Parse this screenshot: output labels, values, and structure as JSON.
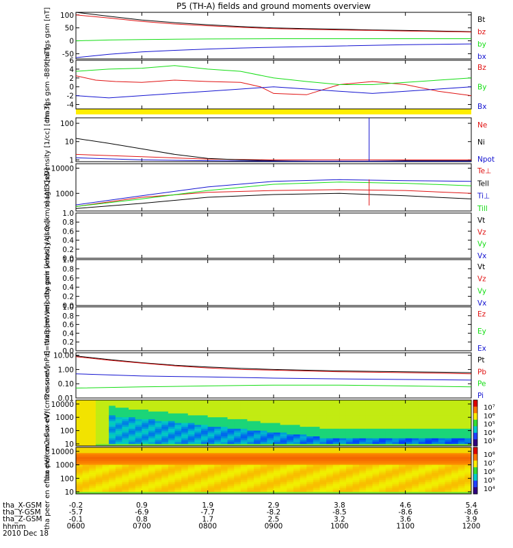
{
  "title": "P5 (TH-A) fields and ground moments overview",
  "date_label": "2010 Dec 18",
  "colors": {
    "black": "#000000",
    "red": "#e01010",
    "green": "#11dd11",
    "blue": "#1010d0",
    "yellow": "#ffee00"
  },
  "chart_data": [
    {
      "type": "line",
      "ylabel": "tha fgs gsm [nT]",
      "ylim": [
        -70,
        110
      ],
      "ticks": [
        100,
        50,
        0,
        -50
      ],
      "series": [
        {
          "name": "Bt",
          "color": "#000000",
          "x": [
            6.0,
            6.5,
            7.0,
            7.5,
            8.0,
            8.5,
            9.0,
            9.5,
            10.0,
            10.5,
            11.0,
            11.5,
            12.0
          ],
          "y": [
            110,
            95,
            80,
            70,
            62,
            55,
            50,
            47,
            45,
            42,
            40,
            38,
            35
          ]
        },
        {
          "name": "bz",
          "color": "#e01010",
          "x": [
            6.0,
            6.5,
            7.0,
            7.5,
            8.0,
            8.5,
            9.0,
            9.5,
            10.0,
            10.5,
            11.0,
            11.5,
            12.0
          ],
          "y": [
            100,
            88,
            75,
            65,
            58,
            52,
            47,
            44,
            42,
            40,
            38,
            36,
            34
          ]
        },
        {
          "name": "by",
          "color": "#11dd11",
          "x": [
            6.0,
            6.5,
            7.0,
            8.0,
            9.0,
            10.0,
            11.0,
            12.0
          ],
          "y": [
            0,
            3,
            5,
            7,
            8,
            8,
            8,
            8
          ]
        },
        {
          "name": "bx",
          "color": "#1010d0",
          "x": [
            6.0,
            6.5,
            7.0,
            7.5,
            8.0,
            8.5,
            9.0,
            10.0,
            11.0,
            12.0
          ],
          "y": [
            -65,
            -52,
            -43,
            -37,
            -32,
            -28,
            -25,
            -20,
            -15,
            -12
          ]
        }
      ]
    },
    {
      "type": "line",
      "ylabel": "tha fgs gsm -B89 [nT]",
      "ylim": [
        -5,
        6
      ],
      "ticks": [
        6,
        4,
        2,
        0,
        -2,
        -4
      ],
      "series": [
        {
          "name": "Bz",
          "color": "#e01010",
          "x": [
            6.0,
            6.3,
            6.6,
            7.0,
            7.5,
            8.0,
            8.5,
            8.8,
            9.0,
            9.5,
            10.0,
            10.5,
            11.0,
            11.5,
            12.0
          ],
          "y": [
            2.5,
            1.5,
            1.2,
            1.0,
            1.5,
            1.2,
            1.0,
            0.0,
            -1.5,
            -1.8,
            0.5,
            1.2,
            0.5,
            -1.0,
            -2.0
          ]
        },
        {
          "name": "By",
          "color": "#11dd11",
          "x": [
            6.0,
            6.5,
            7.0,
            7.5,
            8.0,
            8.5,
            9.0,
            9.5,
            10.0,
            10.5,
            11.0,
            11.5,
            12.0
          ],
          "y": [
            3.5,
            4.0,
            4.2,
            4.8,
            4.0,
            3.5,
            2.0,
            1.2,
            0.5,
            0.5,
            1.0,
            1.5,
            2.0
          ]
        },
        {
          "name": "Bx",
          "color": "#1010d0",
          "x": [
            6.0,
            6.5,
            7.0,
            7.5,
            8.0,
            8.5,
            9.0,
            9.5,
            10.0,
            10.5,
            11.0,
            11.5,
            12.0
          ],
          "y": [
            -2.0,
            -2.5,
            -2.0,
            -1.5,
            -1.0,
            -0.5,
            0.0,
            -0.5,
            -1.0,
            -1.5,
            -1.0,
            -0.5,
            0.0
          ]
        }
      ]
    },
    {
      "type": "line",
      "ylabel": "Density [1/cc] [cm-3]",
      "yscale": "log",
      "ylim": [
        0.8,
        200
      ],
      "ticks": [
        100,
        10,
        1
      ],
      "series": [
        {
          "name": "Ne",
          "color": "#e01010",
          "x": [
            6.0,
            7.0,
            8.0,
            9.0,
            10.0,
            11.0,
            12.0
          ],
          "y": [
            2.0,
            1.5,
            1.1,
            1.0,
            1.0,
            1.0,
            1.0
          ]
        },
        {
          "name": "Ni",
          "color": "#000000",
          "x": [
            6.0,
            6.5,
            7.0,
            7.5,
            8.0,
            8.5,
            9.0,
            10.0,
            11.0,
            12.0
          ],
          "y": [
            15,
            8,
            4,
            2,
            1.2,
            1.0,
            0.9,
            0.8,
            0.9,
            0.9
          ]
        },
        {
          "name": "Npot",
          "color": "#1010d0",
          "x": [
            6.0,
            7.0,
            8.0,
            9.0,
            10.0,
            11.0,
            12.0
          ],
          "y": [
            1.3,
            1.0,
            0.9,
            0.85,
            0.85,
            0.85,
            0.85
          ]
        }
      ]
    },
    {
      "type": "line",
      "ylabel": "magt3 [eV]",
      "yscale": "log",
      "ylim": [
        200,
        15000
      ],
      "ticks": [
        10000,
        1000
      ],
      "series": [
        {
          "name": "Te⊥",
          "color": "#e01010",
          "x": [
            6.0,
            7.0,
            8.0,
            9.0,
            10.0,
            11.0,
            12.0
          ],
          "y": [
            300,
            700,
            1100,
            1300,
            1400,
            1300,
            1000
          ]
        },
        {
          "name": "Tell",
          "color": "#000000",
          "x": [
            6.0,
            7.0,
            8.0,
            9.0,
            10.0,
            11.0,
            12.0
          ],
          "y": [
            250,
            400,
            700,
            900,
            1000,
            800,
            600
          ]
        },
        {
          "name": "Ti⊥",
          "color": "#1010d0",
          "x": [
            6.0,
            7.0,
            8.0,
            9.0,
            10.0,
            11.0,
            12.0
          ],
          "y": [
            350,
            800,
            1800,
            3000,
            3500,
            3200,
            3000
          ]
        },
        {
          "name": "Till",
          "color": "#11dd11",
          "x": [
            6.0,
            7.0,
            8.0,
            9.0,
            10.0,
            11.0,
            12.0
          ],
          "y": [
            300,
            600,
            1300,
            2300,
            2800,
            2500,
            2000
          ]
        }
      ]
    },
    {
      "type": "line",
      "ylabel": "tha peir velocity gsm [km/s] (All Qs)",
      "ylim": [
        0,
        1
      ],
      "ticks": [
        1.0,
        0.8,
        0.6,
        0.4,
        0.2,
        0.0
      ],
      "series": [
        {
          "name": "Vt",
          "color": "#000000",
          "x": [],
          "y": []
        },
        {
          "name": "Vz",
          "color": "#e01010",
          "x": [],
          "y": []
        },
        {
          "name": "Vy",
          "color": "#11dd11",
          "x": [],
          "y": []
        },
        {
          "name": "Vx",
          "color": "#1010d0",
          "x": [],
          "y": []
        }
      ]
    },
    {
      "type": "line",
      "ylabel": "tha peer velocity gsm [km/s] (All Qs)",
      "ylim": [
        0,
        1
      ],
      "ticks": [
        1.0,
        0.8,
        0.6,
        0.4,
        0.2,
        0.0
      ],
      "series": [
        {
          "name": "Vt",
          "color": "#000000",
          "x": [],
          "y": []
        },
        {
          "name": "Vz",
          "color": "#e01010",
          "x": [],
          "y": []
        },
        {
          "name": "Vy",
          "color": "#11dd11",
          "x": [],
          "y": []
        },
        {
          "name": "Vx",
          "color": "#1010d0",
          "x": [],
          "y": []
        }
      ]
    },
    {
      "type": "line",
      "ylabel": "E=-VxB [mV/m]",
      "ylim": [
        0,
        1
      ],
      "ticks": [
        1.0,
        0.8,
        0.6,
        0.4,
        0.2,
        0.0
      ],
      "series": [
        {
          "name": "Ez",
          "color": "#e01010",
          "x": [],
          "y": []
        },
        {
          "name": "Ey",
          "color": "#11dd11",
          "x": [],
          "y": []
        },
        {
          "name": "Ex",
          "color": "#1010d0",
          "x": [],
          "y": []
        }
      ]
    },
    {
      "type": "line",
      "ylabel": "Pressure [nPa]",
      "yscale": "log",
      "ylim": [
        0.01,
        15
      ],
      "ticks": [
        10.0,
        1.0,
        0.1,
        0.01
      ],
      "series": [
        {
          "name": "Pt",
          "color": "#000000",
          "x": [
            6.0,
            6.5,
            7.0,
            7.5,
            8.0,
            8.5,
            9.0,
            10.0,
            11.0,
            12.0
          ],
          "y": [
            9,
            5,
            3,
            2,
            1.5,
            1.2,
            1.0,
            0.8,
            0.7,
            0.6
          ]
        },
        {
          "name": "Pb",
          "color": "#e01010",
          "x": [
            6.0,
            6.5,
            7.0,
            7.5,
            8.0,
            8.5,
            9.0,
            10.0,
            11.0,
            12.0
          ],
          "y": [
            8,
            4.5,
            2.8,
            1.8,
            1.3,
            1.0,
            0.9,
            0.7,
            0.6,
            0.5
          ]
        },
        {
          "name": "Pe",
          "color": "#11dd11",
          "x": [
            6.0,
            7.0,
            8.0,
            9.0,
            10.0,
            11.0,
            12.0
          ],
          "y": [
            0.05,
            0.06,
            0.07,
            0.08,
            0.08,
            0.07,
            0.06
          ]
        },
        {
          "name": "Pi",
          "color": "#1010d0",
          "x": [
            6.0,
            7.0,
            8.0,
            9.0,
            10.0,
            11.0,
            12.0
          ],
          "y": [
            0.5,
            0.35,
            0.3,
            0.25,
            0.22,
            0.2,
            0.18
          ]
        }
      ]
    },
    {
      "type": "heatmap",
      "ylabel": "tha peir en eflux eV/(cm2-s-sr-eV)",
      "yscale": "log",
      "ylim": [
        7,
        20000
      ],
      "ticks": [
        10000,
        1000,
        100,
        10
      ],
      "colorbar_ticks": [
        "10⁷",
        "10⁶",
        "10⁵",
        "10⁴",
        "10³"
      ]
    },
    {
      "type": "heatmap",
      "ylabel": "tha peer en eflux eV/(cm2-s-sr-eV)",
      "yscale": "log",
      "ylim": [
        7,
        20000
      ],
      "ticks": [
        10000,
        1000,
        100,
        10
      ],
      "colorbar_ticks": [
        "10⁸",
        "10⁷",
        "10⁶",
        "10⁵",
        "10⁴"
      ]
    }
  ],
  "x_axis": {
    "rows": [
      {
        "label": "tha_X-GSM",
        "values": [
          "-0.2",
          "0.9",
          "1.9",
          "2.9",
          "3.8",
          "4.6",
          "5.4"
        ]
      },
      {
        "label": "tha_Y-GSM",
        "values": [
          "-5.7",
          "-6.9",
          "-7.7",
          "-8.2",
          "-8.5",
          "-8.6",
          "-8.6"
        ]
      },
      {
        "label": "tha_Z-GSM",
        "values": [
          "-0.1",
          "0.8",
          "1.7",
          "2.5",
          "3.2",
          "3.6",
          "3.9"
        ]
      },
      {
        "label": "hhmm",
        "values": [
          "0600",
          "0700",
          "0800",
          "0900",
          "1000",
          "1100",
          "1200"
        ]
      }
    ]
  }
}
